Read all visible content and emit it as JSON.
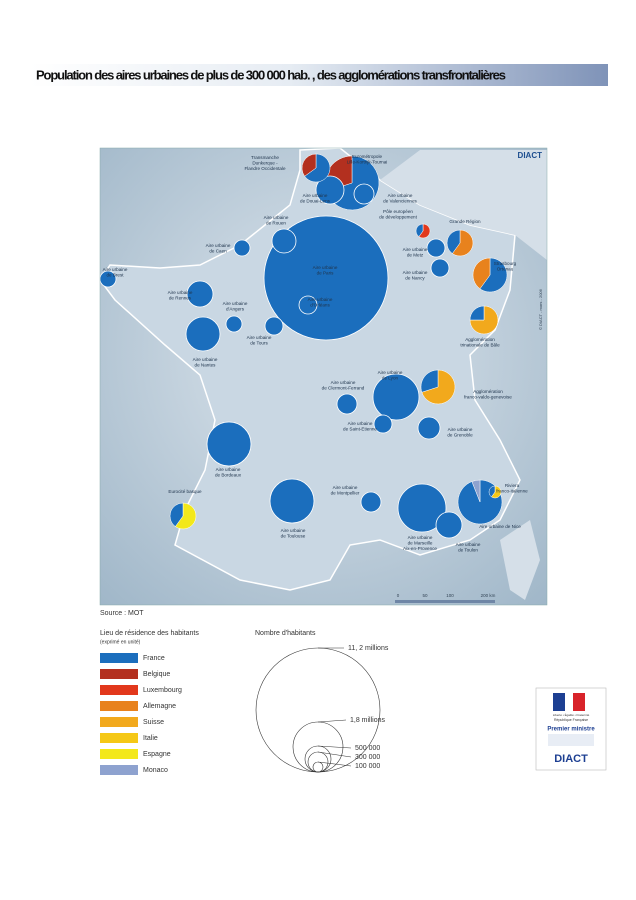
{
  "title": "Population des aires urbaines  de plus de 300 000 hab. , des agglomérations transfrontalières",
  "map": {
    "badge": "DIACT",
    "credit": "© DIACT - mars - 2006",
    "labels": [
      [
        "Eurométropole",
        "Lille-Kortrijk-Tournai"
      ],
      [
        "Transmanche",
        "Dunkerque -",
        "Flandre Occidentale"
      ],
      [
        "Aire urbaine",
        "de Douai-Lens"
      ],
      [
        "Aire urbaine",
        "de Valenciennes"
      ],
      [
        "Aire urbaine",
        "de Rouen"
      ],
      [
        "Aire urbaine",
        "de Caen"
      ],
      [
        "Aire urbaine",
        "de Brest"
      ],
      [
        "Aire urbaine",
        "de Paris"
      ],
      [
        "Aire urbaine",
        "d'Orléans"
      ],
      [
        "Aire urbaine",
        "de Rennes"
      ],
      [
        "Aire urbaine",
        "d'Angers"
      ],
      [
        "Aire urbaine",
        "de Tours"
      ],
      [
        "Aire urbaine",
        "de Nantes"
      ],
      [
        "Aire urbaine",
        "de Metz"
      ],
      [
        "Aire urbaine",
        "de Nancy"
      ],
      [
        "Pôle européen",
        "de développement"
      ],
      [
        "Grande Région"
      ],
      [
        "Strasbourg",
        "Ortenau"
      ],
      [
        "Agglomération",
        "trinationale de Bâle"
      ],
      [
        "Aire urbaine",
        "de Clermont-Ferrand"
      ],
      [
        "Aire urbaine",
        "de Lyon"
      ],
      [
        "Agglomération",
        "franco-valdo-genevoise"
      ],
      [
        "Aire urbaine",
        "de Saint-Etienne"
      ],
      [
        "Aire urbaine",
        "de Grenoble"
      ],
      [
        "Aire urbaine",
        "de Bordeaux"
      ],
      [
        "Eurocité basque"
      ],
      [
        "Aire urbaine",
        "de Montpellier"
      ],
      [
        "Aire urbaine",
        "de Toulouse"
      ],
      [
        "Aire urbaine",
        "de Marseille",
        "Aix-en-Provence"
      ],
      [
        "Aire urbaine",
        "de Toulon"
      ],
      [
        "Aire urbaine de Nice"
      ],
      [
        "Riviera",
        "franco-italienne"
      ]
    ],
    "scale": [
      "0",
      "50",
      "100",
      "200 km"
    ]
  },
  "source": "Source : MOT",
  "legend": {
    "title": "Lieu de résidence des habitants",
    "subtitle": "(exprimé en unité)",
    "items": [
      {
        "label": "France",
        "color": "#1b6ebd"
      },
      {
        "label": "Belgique",
        "color": "#b3301f"
      },
      {
        "label": "Luxembourg",
        "color": "#e2381c"
      },
      {
        "label": "Allemagne",
        "color": "#e8821d"
      },
      {
        "label": "Suisse",
        "color": "#f2a91c"
      },
      {
        "label": "Italie",
        "color": "#f5c817"
      },
      {
        "label": "Espagne",
        "color": "#f3e81b"
      },
      {
        "label": "Monaco",
        "color": "#8ea2cf"
      }
    ]
  },
  "size_legend": {
    "title": "Nombre d'habitants",
    "labels": [
      "11, 2 millions",
      "1,8 millions",
      "500 000",
      "300 000",
      "100 000"
    ]
  },
  "logo": {
    "motto": "Liberté • Égalité • Fraternité",
    "republic": "République Française",
    "office": "Premier ministre",
    "name": "DIACT"
  }
}
